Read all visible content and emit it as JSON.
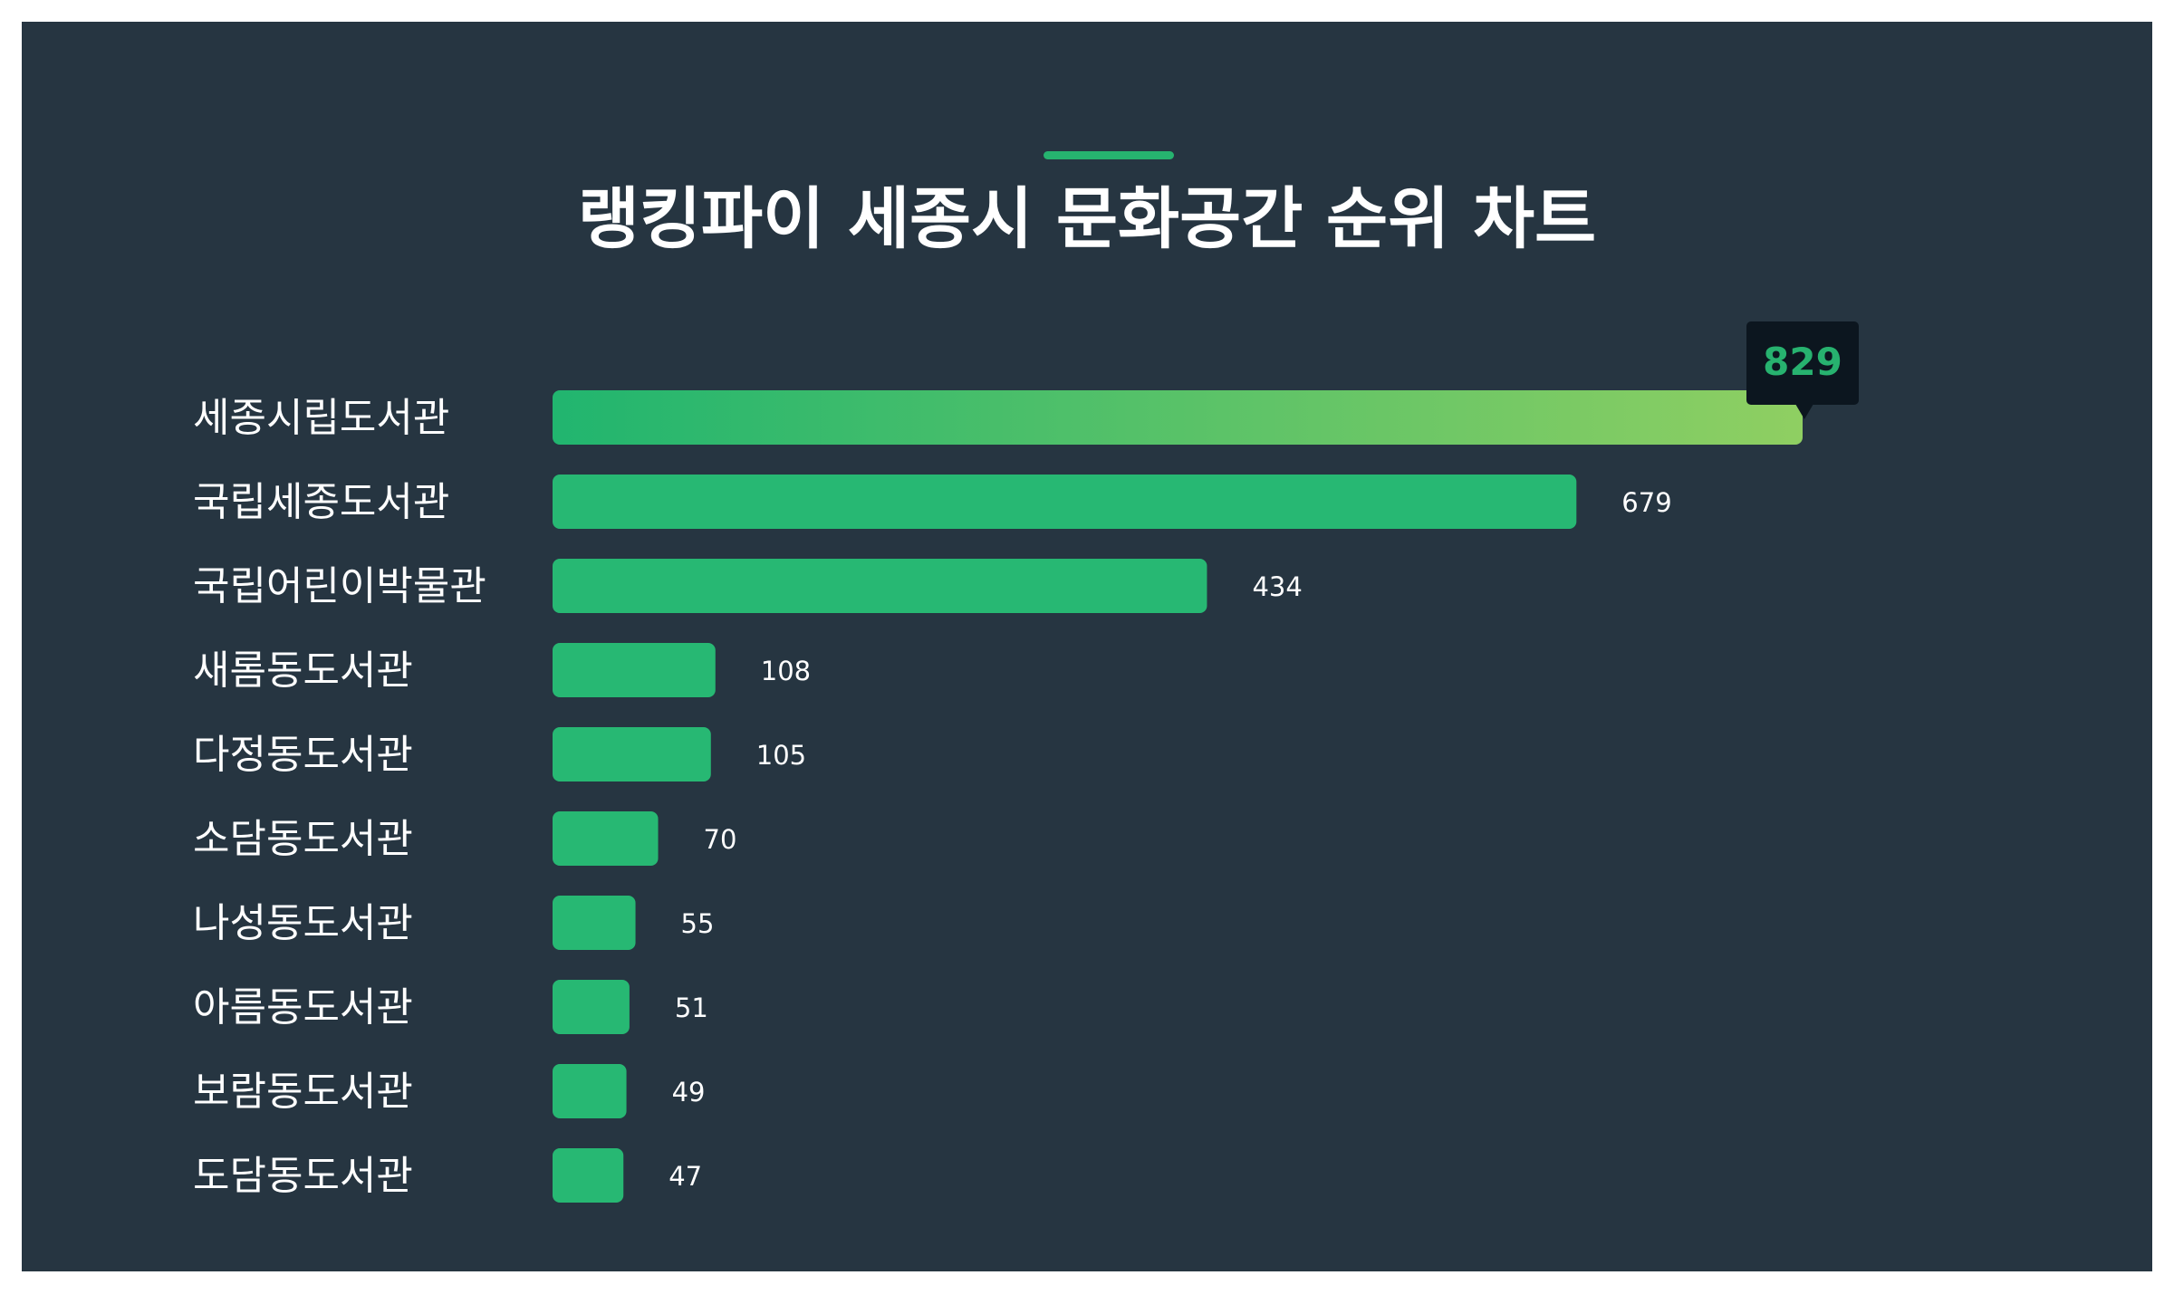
{
  "title": "랭킹파이 세종시 문화공간 순위 차트",
  "colors": {
    "background": "#263541",
    "bar": "#27b873",
    "top_bar_gradient_start": "#21b56f",
    "top_bar_gradient_end": "#8fcf62",
    "tooltip_bg": "#0c161f",
    "tooltip_text": "#27b26f",
    "accent": "#26b36f"
  },
  "chart_data": {
    "type": "bar",
    "orientation": "horizontal",
    "categories": [
      "세종시립도서관",
      "국립세종도서관",
      "국립어린이박물관",
      "새롬동도서관",
      "다정동도서관",
      "소담동도서관",
      "나성동도서관",
      "아름동도서관",
      "보람동도서관",
      "도담동도서관"
    ],
    "values": [
      829,
      679,
      434,
      108,
      105,
      70,
      55,
      51,
      49,
      47
    ],
    "highlight": {
      "index": 0,
      "label": "829"
    },
    "xlim": [
      0,
      829
    ],
    "grid": false,
    "legend": "none"
  }
}
